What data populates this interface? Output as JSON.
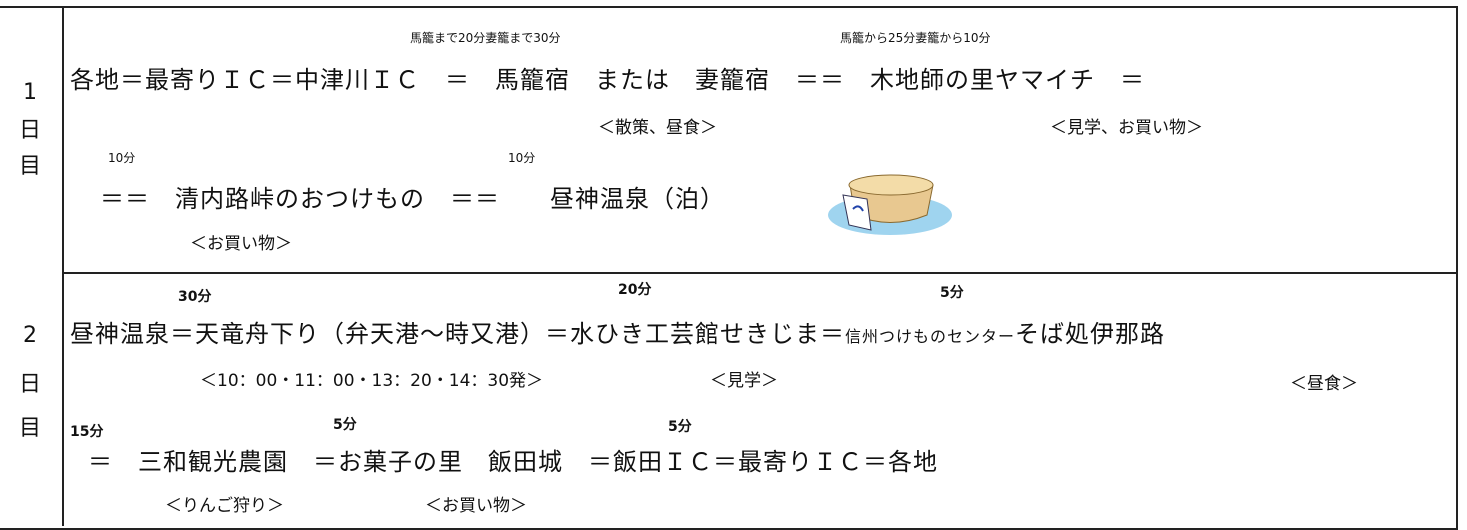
{
  "days": [
    {
      "label": [
        "1",
        "日",
        "目"
      ],
      "times1": [
        "馬籠まで20分妻籠まで30分",
        "馬籠から25分妻籠から10分"
      ],
      "main1": "各地＝最寄りＩＣ＝中津川ＩＣ　＝　馬籠宿　または　妻籠宿　＝＝　木地師の里ヤマイチ　＝",
      "notes1": [
        "＜散策、昼食＞",
        "＜見学、お買い物＞"
      ],
      "times2": [
        "10分",
        "10分"
      ],
      "main2": "＝＝　清内路峠のおつけもの　＝＝　　昼神温泉（泊）",
      "notes2": [
        "＜お買い物＞"
      ]
    },
    {
      "label": [
        "2",
        "日",
        "目"
      ],
      "times1": [
        "30分",
        "20分",
        "5分"
      ],
      "main1": [
        "昼神温泉＝天竜舟下り（弁天港～時又港）＝水ひき工芸館せきじま＝",
        "信州つけものセンター",
        "そば処伊那路"
      ],
      "notes1": [
        "＜10：00・11：00・13：20・14：30発＞",
        "＜見学＞",
        "＜昼食＞"
      ],
      "times2": [
        "15分",
        "5分",
        "5分"
      ],
      "main2": "＝　三和観光農園　＝お菓子の里　飯田城　＝飯田ＩＣ＝最寄りＩＣ＝各地",
      "notes2": [
        "＜りんご狩り＞",
        "＜お買い物＞"
      ]
    }
  ]
}
